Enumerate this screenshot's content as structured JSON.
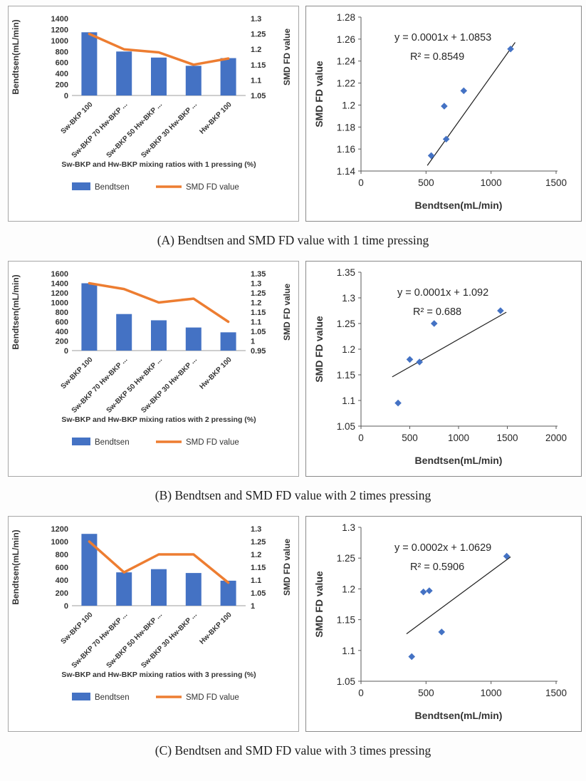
{
  "figure": {
    "captions": [
      "(A) Bendtsen and SMD FD value with 1 time pressing",
      "(B) Bendtsen and SMD FD value with 2 times pressing",
      "(C) Bendtsen and SMD FD value with 3 times pressing"
    ]
  },
  "colors": {
    "bar_blue": "#4472C4",
    "line_orange": "#ED7D31",
    "trendline_black": "#1f1f1f"
  },
  "chart_data": [
    {
      "id": "combo-a",
      "type": "bar",
      "subtype": "bar+line-dual-axis",
      "categories": [
        "Sw-BKP 100",
        "Sw-BKP 70 Hw-BKP ...",
        "Sw-BKP 50 Hw-BKP ...",
        "Sw-BKP 30 Hw-BKP ...",
        "Hw-BKP 100"
      ],
      "series": [
        {
          "name": "Bendtsen",
          "type": "bar",
          "axis": "left",
          "color": "#4472C4",
          "values": [
            1150,
            800,
            690,
            540,
            680
          ]
        },
        {
          "name": "SMD FD value",
          "type": "line",
          "axis": "right",
          "color": "#ED7D31",
          "values": [
            1.25,
            1.2,
            1.19,
            1.15,
            1.17
          ]
        }
      ],
      "left_axis": {
        "title": "Bendtsen(mL/min)",
        "min": 0,
        "max": 1400,
        "step": 200
      },
      "right_axis": {
        "title": "SMD FD value",
        "min": 1.05,
        "max": 1.3,
        "step": 0.05
      },
      "xlabel": "Sw-BKP and Hw-BKP mixing ratios with 1 pressing (%)",
      "legend": [
        "Bendtsen",
        "SMD FD value"
      ],
      "legend_position": "bottom",
      "grid": false
    },
    {
      "id": "scatter-a",
      "type": "scatter",
      "points": [
        [
          540,
          1.154
        ],
        [
          640,
          1.199
        ],
        [
          655,
          1.169
        ],
        [
          790,
          1.213
        ],
        [
          1150,
          1.251
        ]
      ],
      "trendline": [
        [
          510,
          1.145
        ],
        [
          1185,
          1.257
        ]
      ],
      "equation": "y = 0.0001x + 1.0853",
      "r_squared": "R² = 0.8549",
      "xlabel": "Bendtsen(mL/min)",
      "ylabel": "SMD FD value",
      "x_axis": {
        "min": 0,
        "max": 1500,
        "step": 500
      },
      "y_axis": {
        "min": 1.14,
        "max": 1.28,
        "step": 0.02
      },
      "marker": {
        "shape": "diamond",
        "color": "#4472C4"
      },
      "grid": false
    },
    {
      "id": "combo-b",
      "type": "bar",
      "subtype": "bar+line-dual-axis",
      "categories": [
        "Sw-BKP 100",
        "Sw-BKP 70 Hw-BKP ...",
        "Sw-BKP 50 Hw-BKP ...",
        "Sw-BKP 30 Hw-BKP ...",
        "Hw-BKP 100"
      ],
      "series": [
        {
          "name": "Bendtsen",
          "type": "bar",
          "axis": "left",
          "color": "#4472C4",
          "values": [
            1400,
            760,
            630,
            480,
            380
          ]
        },
        {
          "name": "SMD FD value",
          "type": "line",
          "axis": "right",
          "color": "#ED7D31",
          "values": [
            1.3,
            1.27,
            1.2,
            1.22,
            1.1
          ]
        }
      ],
      "left_axis": {
        "title": "Bendtsen(mL/min)",
        "min": 0,
        "max": 1600,
        "step": 200
      },
      "right_axis": {
        "title": "SMD FD value",
        "min": 0.95,
        "max": 1.35,
        "step": 0.05
      },
      "xlabel": "Sw-BKP and Hw-BKP mixing ratios with 2 pressing (%)",
      "legend": [
        "Bendtsen",
        "SMD FD value"
      ],
      "legend_position": "bottom",
      "grid": false
    },
    {
      "id": "scatter-b",
      "type": "scatter",
      "points": [
        [
          380,
          1.095
        ],
        [
          500,
          1.18
        ],
        [
          600,
          1.175
        ],
        [
          750,
          1.25
        ],
        [
          1430,
          1.275
        ]
      ],
      "trendline": [
        [
          320,
          1.146
        ],
        [
          1490,
          1.272
        ]
      ],
      "equation": "y = 0.0001x + 1.092",
      "r_squared": "R² = 0.688",
      "xlabel": "Bendtsen(mL/min)",
      "ylabel": "SMD FD value",
      "x_axis": {
        "min": 0,
        "max": 2000,
        "step": 500
      },
      "y_axis": {
        "min": 1.05,
        "max": 1.35,
        "step": 0.05
      },
      "marker": {
        "shape": "diamond",
        "color": "#4472C4"
      },
      "grid": false
    },
    {
      "id": "combo-c",
      "type": "bar",
      "subtype": "bar+line-dual-axis",
      "categories": [
        "Sw-BKP 100",
        "Sw-BKP 70 Hw-BKP ...",
        "Sw-BKP 50 Hw-BKP ...",
        "Sw-BKP 30 Hw-BKP ...",
        "Hw-BKP 100"
      ],
      "series": [
        {
          "name": "Bendtsen",
          "type": "bar",
          "axis": "left",
          "color": "#4472C4",
          "values": [
            1120,
            520,
            570,
            510,
            390
          ]
        },
        {
          "name": "SMD FD value",
          "type": "line",
          "axis": "right",
          "color": "#ED7D31",
          "values": [
            1.25,
            1.13,
            1.2,
            1.2,
            1.09
          ]
        }
      ],
      "left_axis": {
        "title": "Bendtsen(mL/min)",
        "min": 0,
        "max": 1200,
        "step": 200
      },
      "right_axis": {
        "title": "SMD FD value",
        "min": 1,
        "max": 1.3,
        "step": 0.05
      },
      "xlabel": "Sw-BKP and Hw-BKP mixing ratios with 3 pressing (%)",
      "legend": [
        "Bendtsen",
        "SMD FD value"
      ],
      "legend_position": "bottom",
      "grid": false
    },
    {
      "id": "scatter-c",
      "type": "scatter",
      "points": [
        [
          390,
          1.09
        ],
        [
          480,
          1.195
        ],
        [
          525,
          1.197
        ],
        [
          620,
          1.13
        ],
        [
          1120,
          1.253
        ]
      ],
      "trendline": [
        [
          350,
          1.127
        ],
        [
          1150,
          1.252
        ]
      ],
      "equation": "y = 0.0002x + 1.0629",
      "r_squared": "R² = 0.5906",
      "xlabel": "Bendtsen(mL/min)",
      "ylabel": "SMD FD value",
      "x_axis": {
        "min": 0,
        "max": 1500,
        "step": 500
      },
      "y_axis": {
        "min": 1.05,
        "max": 1.3,
        "step": 0.05
      },
      "marker": {
        "shape": "diamond",
        "color": "#4472C4"
      },
      "grid": false
    }
  ]
}
